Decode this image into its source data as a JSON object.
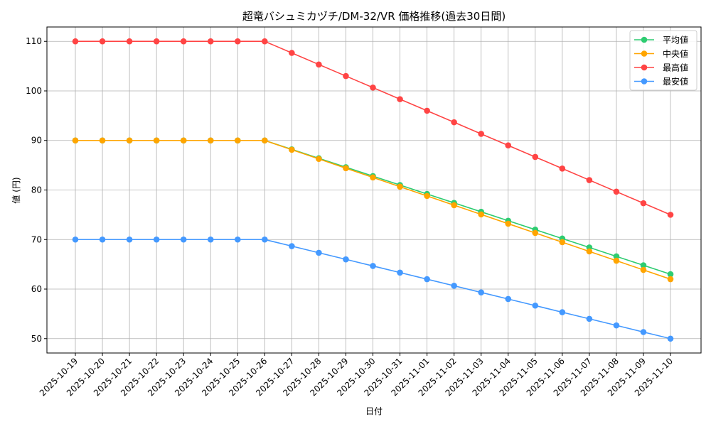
{
  "chart_data": {
    "type": "line",
    "title": "超竜バシュミカヅチ/DM-32/VR 価格推移(過去30日間)",
    "xlabel": "日付",
    "ylabel": "値 (円)",
    "ylim": [
      47.1,
      112.9
    ],
    "yticks": [
      50,
      60,
      70,
      80,
      90,
      100,
      110
    ],
    "grid": true,
    "legend_position": "top-right",
    "categories": [
      "2025-10-19",
      "2025-10-20",
      "2025-10-21",
      "2025-10-22",
      "2025-10-23",
      "2025-10-24",
      "2025-10-25",
      "2025-10-26",
      "2025-10-27",
      "2025-10-28",
      "2025-10-29",
      "2025-10-30",
      "2025-10-31",
      "2025-11-01",
      "2025-11-02",
      "2025-11-03",
      "2025-11-04",
      "2025-11-05",
      "2025-11-06",
      "2025-11-07",
      "2025-11-08",
      "2025-11-09",
      "2025-11-10"
    ],
    "series": [
      {
        "name": "平均値",
        "color": "#2ecc71",
        "values": [
          90,
          90,
          90,
          90,
          90,
          90,
          90,
          90,
          88.2,
          86.4,
          84.6,
          82.8,
          81,
          79.2,
          77.4,
          75.6,
          73.8,
          72,
          70.2,
          68.4,
          66.6,
          64.8,
          63
        ]
      },
      {
        "name": "中央値",
        "color": "#ffa500",
        "values": [
          90,
          90,
          90,
          90,
          90,
          90,
          90,
          90,
          88.13,
          86.27,
          84.4,
          82.53,
          80.67,
          78.8,
          76.93,
          75.07,
          73.2,
          71.33,
          69.47,
          67.6,
          65.73,
          63.87,
          62
        ]
      },
      {
        "name": "最高値",
        "color": "#ff4444",
        "values": [
          110,
          110,
          110,
          110,
          110,
          110,
          110,
          110,
          107.67,
          105.33,
          103,
          100.67,
          98.33,
          96,
          93.67,
          91.33,
          89,
          86.67,
          84.33,
          82,
          79.67,
          77.33,
          75
        ]
      },
      {
        "name": "最安値",
        "color": "#4499ff",
        "values": [
          70,
          70,
          70,
          70,
          70,
          70,
          70,
          70,
          68.67,
          67.33,
          66,
          64.67,
          63.33,
          62,
          60.67,
          59.33,
          58,
          56.67,
          55.33,
          54,
          52.67,
          51.33,
          50
        ]
      }
    ]
  }
}
